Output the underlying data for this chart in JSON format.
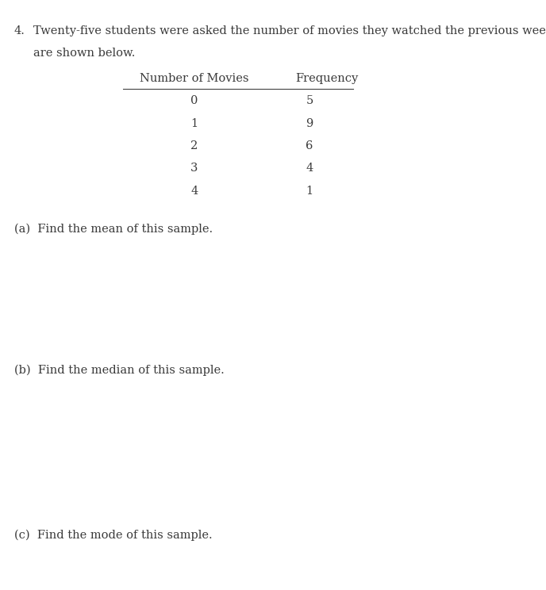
{
  "background_color": "#ffffff",
  "problem_number": "4.",
  "problem_line1": "Twenty-five students were asked the number of movies they watched the previous week. The results",
  "problem_line2": "are shown below.",
  "table_header": [
    "Number of Movies",
    "Frequency"
  ],
  "table_data": [
    [
      "0",
      "5"
    ],
    [
      "1",
      "9"
    ],
    [
      "2",
      "6"
    ],
    [
      "3",
      "4"
    ],
    [
      "4",
      "1"
    ]
  ],
  "part_a": "(a)  Find the mean of this sample.",
  "part_b": "(b)  Find the median of this sample.",
  "part_c": "(c)  Find the mode of this sample.",
  "font_size": 10.5,
  "text_color": "#3a3a3a",
  "fig_width": 6.88,
  "fig_height": 7.44,
  "dpi": 100
}
